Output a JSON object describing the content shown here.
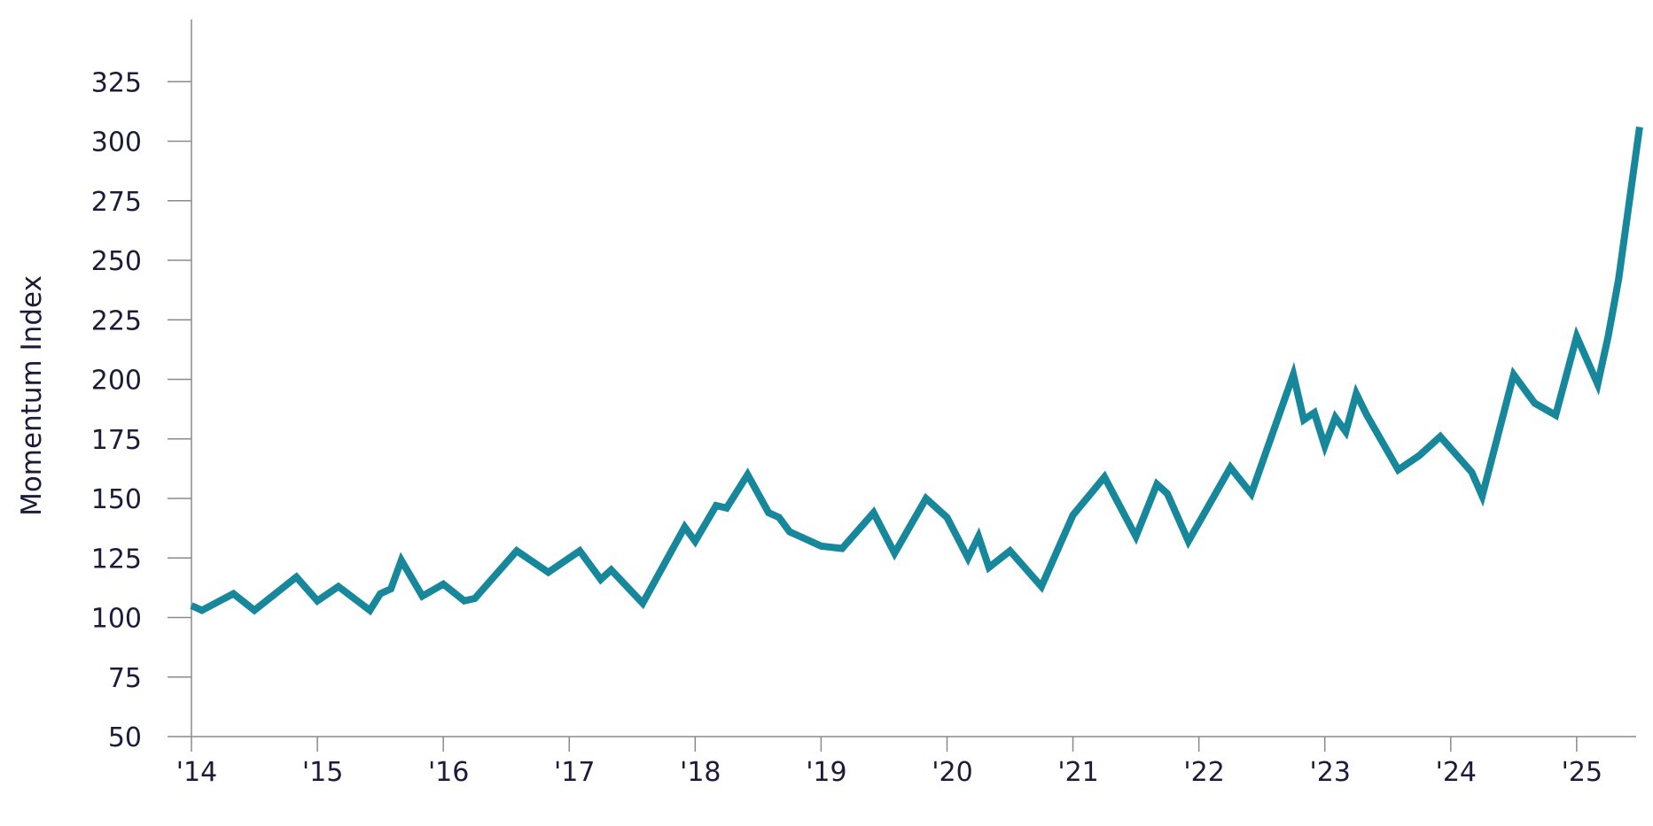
{
  "chart_data": {
    "type": "line",
    "title": "",
    "xlabel": "",
    "ylabel": "Momentum Index",
    "ylim": [
      50,
      345
    ],
    "xlim": [
      "2014-01",
      "2025-07"
    ],
    "grid": false,
    "color": "#17879b",
    "y_ticks": [
      50,
      75,
      100,
      125,
      150,
      175,
      200,
      225,
      250,
      275,
      300,
      325
    ],
    "y_tick_labels": [
      "50",
      "75",
      "100",
      "125",
      "150",
      "175",
      "200",
      "225",
      "250",
      "275",
      "300",
      "325"
    ],
    "x_ticks": [
      "2014-01",
      "2015-01",
      "2016-01",
      "2017-01",
      "2018-01",
      "2019-01",
      "2020-01",
      "2021-01",
      "2022-01",
      "2023-01",
      "2024-01",
      "2025-01"
    ],
    "x_tick_labels": [
      "'14",
      "'15",
      "'16",
      "'17",
      "'18",
      "'19",
      "'20",
      "'21",
      "'22",
      "'23",
      "'24",
      "'25"
    ],
    "series": [
      {
        "x": [
          "2014-01",
          "2014-02",
          "2014-05",
          "2014-07",
          "2014-11",
          "2015-01",
          "2015-03",
          "2015-06",
          "2015-07",
          "2015-08",
          "2015-09",
          "2015-11",
          "2016-01",
          "2016-03",
          "2016-04",
          "2016-08",
          "2016-11",
          "2017-02",
          "2017-04",
          "2017-05",
          "2017-08",
          "2017-12",
          "2018-01",
          "2018-03",
          "2018-04",
          "2018-06",
          "2018-08",
          "2018-09",
          "2018-10",
          "2018-11",
          "2019-01",
          "2019-03",
          "2019-06",
          "2019-08",
          "2019-11",
          "2020-01",
          "2020-03",
          "2020-04",
          "2020-05",
          "2020-07",
          "2020-10",
          "2021-01",
          "2021-04",
          "2021-07",
          "2021-09",
          "2021-10",
          "2021-12",
          "2022-04",
          "2022-06",
          "2022-10",
          "2022-11",
          "2022-12",
          "2023-01",
          "2023-02",
          "2023-03",
          "2023-04",
          "2023-05",
          "2023-08",
          "2023-10",
          "2023-12",
          "2024-03",
          "2024-04",
          "2024-07",
          "2024-09",
          "2024-11",
          "2025-01",
          "2025-03",
          "2025-04",
          "2025-05",
          "2025-07"
        ],
        "y": [
          105,
          103,
          110,
          103,
          117,
          107,
          113,
          103,
          110,
          112,
          124,
          109,
          114,
          107,
          108,
          128,
          119,
          128,
          116,
          120,
          106,
          138,
          132,
          147,
          146,
          160,
          144,
          142,
          136,
          134,
          130,
          129,
          144,
          127,
          150,
          142,
          125,
          134,
          121,
          128,
          113,
          143,
          159,
          134,
          156,
          152,
          132,
          163,
          152,
          202,
          183,
          186,
          172,
          184,
          178,
          194,
          185,
          162,
          168,
          176,
          161,
          151,
          202,
          190,
          185,
          218,
          198,
          218,
          242,
          306
        ]
      }
    ]
  }
}
